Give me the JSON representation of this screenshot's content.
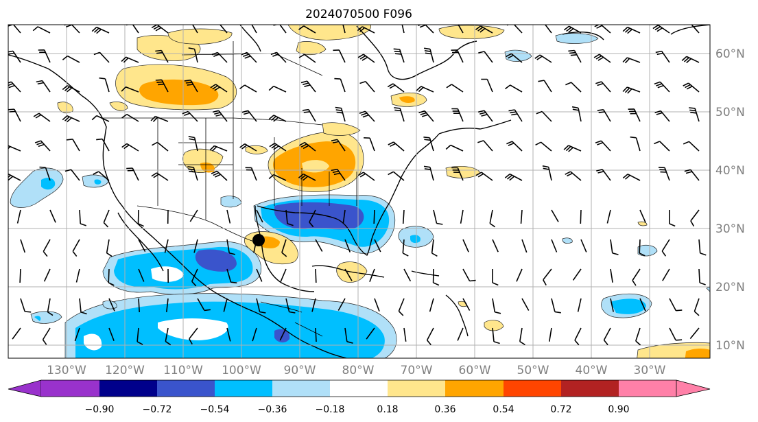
{
  "title": "2024070500 F096",
  "lon_labels": [
    "130°W",
    "120°W",
    "110°W",
    "100°W",
    "90°W",
    "80°W",
    "70°W",
    "60°W",
    "50°W",
    "40°W",
    "30°W"
  ],
  "lat_labels": [
    "60°N",
    "50°N",
    "40°N",
    "30°N",
    "20°N",
    "10°N"
  ],
  "colorbar": {
    "ticks": [
      "−0.90",
      "−0.72",
      "−0.54",
      "−0.36",
      "−0.18",
      "0.18",
      "0.36",
      "0.54",
      "0.72",
      "0.90"
    ],
    "colors": [
      "#9932cc",
      "#00008b",
      "#3a54cc",
      "#00bfff",
      "#b0e0f8",
      "#ffffff",
      "#ffe68c",
      "#ffa500",
      "#ff4500",
      "#b22222",
      "#ff80a8"
    ]
  },
  "marker": {
    "label": "storm-center",
    "color": "#000000"
  }
}
